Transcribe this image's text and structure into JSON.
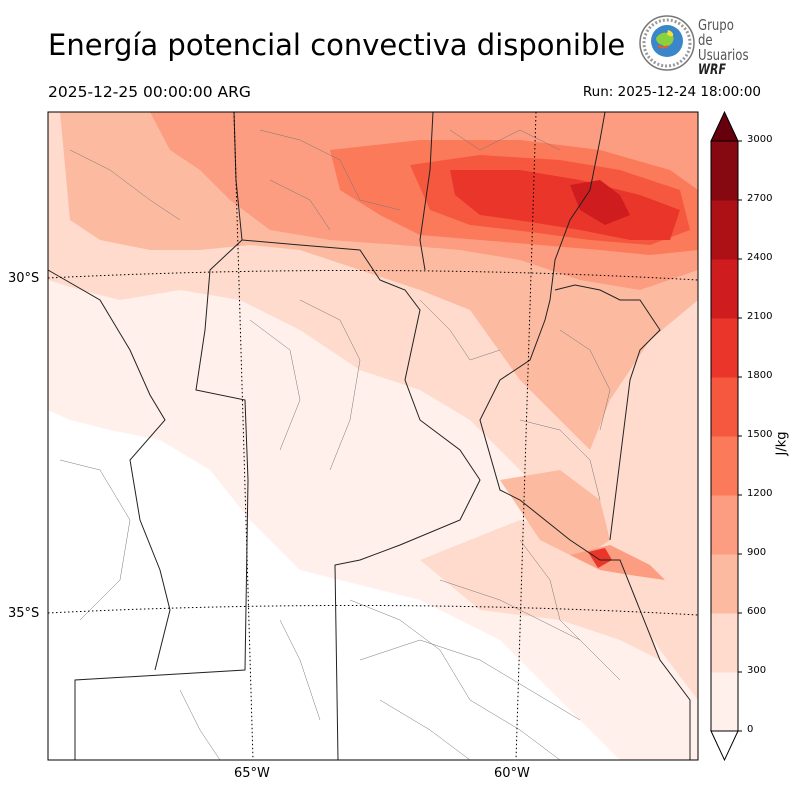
{
  "header": {
    "title": "Energía potencial convectiva disponible",
    "valid_time": "2025-12-25 00:00:00 ARG",
    "run_time": "Run: 2025-12-24 18:00:00"
  },
  "logo": {
    "line1": "Grupo de",
    "line2": "Usuarios",
    "line3": "WRF",
    "icon": "wrf-users-group-logo"
  },
  "map": {
    "lat_labels": [
      "30°S",
      "35°S"
    ],
    "lon_labels": [
      "65°W",
      "60°W"
    ]
  },
  "colorbar": {
    "unit": "J/kg",
    "ticks": [
      "0",
      "300",
      "600",
      "900",
      "1200",
      "1500",
      "1800",
      "2100",
      "2400",
      "2700",
      "3000"
    ],
    "colors": [
      "#fff0eb",
      "#fedbcd",
      "#fcbba1",
      "#fc9c80",
      "#fb7a5a",
      "#f6583f",
      "#ea362a",
      "#cf1c1f",
      "#ad1116",
      "#860811"
    ],
    "extend_min_color": "#ffffff",
    "extend_max_color": "#67000d"
  }
}
